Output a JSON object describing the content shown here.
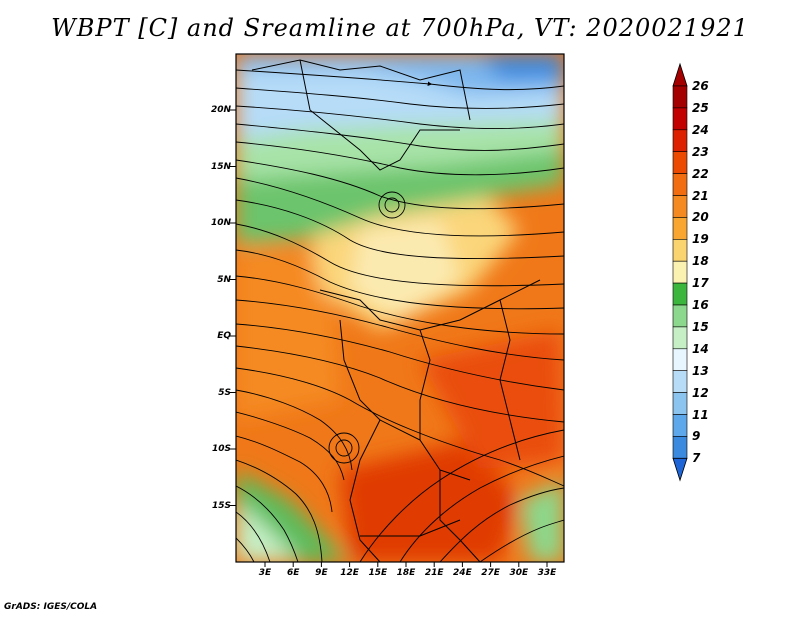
{
  "title": "WBPT [C] and Sreamline at 700hPa, VT: 2020021921",
  "footer": "GrADS: IGES/COLA",
  "map": {
    "lat_labels": [
      "20N",
      "15N",
      "10N",
      "5N",
      "EQ",
      "5S",
      "10S",
      "15S"
    ],
    "lon_labels": [
      "3E",
      "6E",
      "9E",
      "12E",
      "15E",
      "18E",
      "21E",
      "24E",
      "27E",
      "30E",
      "33E"
    ],
    "field": "wet-bulb potential temperature",
    "overlay": "streamlines"
  },
  "colorbar": {
    "labels": [
      "26",
      "25",
      "24",
      "23",
      "22",
      "21",
      "20",
      "19",
      "18",
      "17",
      "16",
      "15",
      "14",
      "13",
      "12",
      "11",
      "9",
      "7"
    ],
    "colors": [
      "#a50000",
      "#c20000",
      "#dd2000",
      "#ec4a00",
      "#f26d10",
      "#f58a20",
      "#f8a630",
      "#fad46e",
      "#fbf1b0",
      "#3cb63c",
      "#8cd88c",
      "#c6efc6",
      "#e8f6ff",
      "#b6dcf8",
      "#8cc4f0",
      "#5ca8ea",
      "#3a8ae0",
      "#1e66d8"
    ]
  }
}
